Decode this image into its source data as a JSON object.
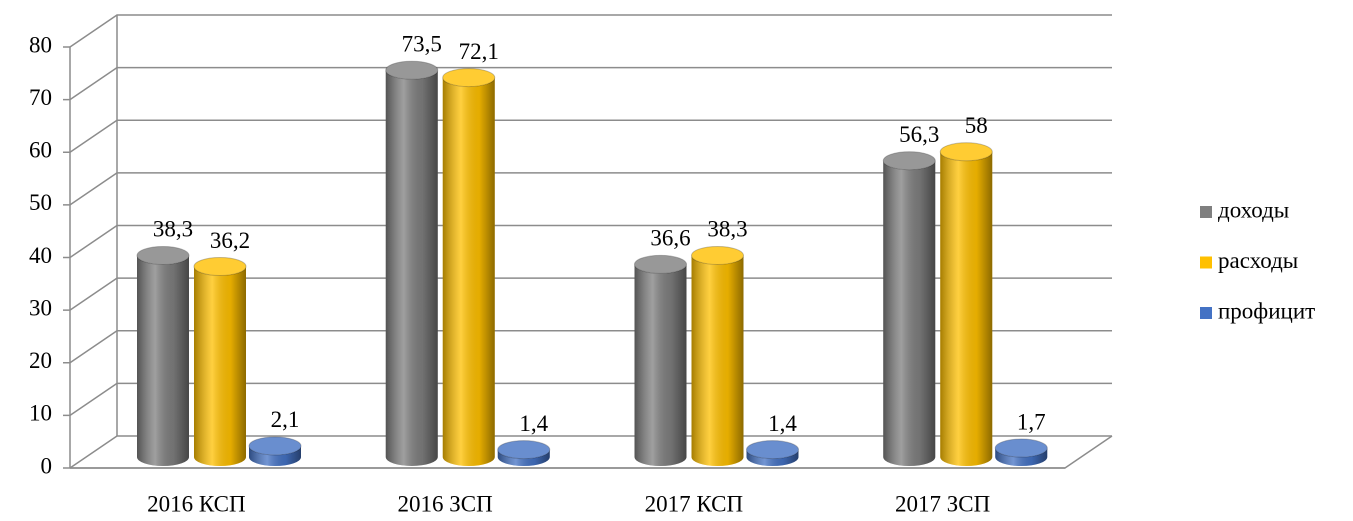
{
  "chart_data": {
    "type": "bar3d",
    "categories": [
      "2016 КСП",
      "2016 ЗСП",
      "2017 КСП",
      "2017 ЗСП"
    ],
    "series": [
      {
        "name": "доходы",
        "color": "#7f7f7f",
        "values": [
          38.3,
          73.5,
          36.6,
          56.3
        ],
        "value_labels": [
          "38,3",
          "73,5",
          "36,6",
          "56,3"
        ]
      },
      {
        "name": "расходы",
        "color": "#ffc000",
        "values": [
          36.2,
          72.1,
          38.3,
          58
        ],
        "value_labels": [
          "36,2",
          "72,1",
          "38,3",
          "58"
        ]
      },
      {
        "name": "профицит",
        "color": "#4472c4",
        "values": [
          2.1,
          1.4,
          1.4,
          1.7
        ],
        "value_labels": [
          "2,1",
          "1,4",
          "1,4",
          "1,7"
        ]
      }
    ],
    "ylim": [
      0,
      80
    ],
    "yticks": [
      0,
      10,
      20,
      30,
      40,
      50,
      60,
      70,
      80
    ],
    "grid": true,
    "legend": "right"
  }
}
